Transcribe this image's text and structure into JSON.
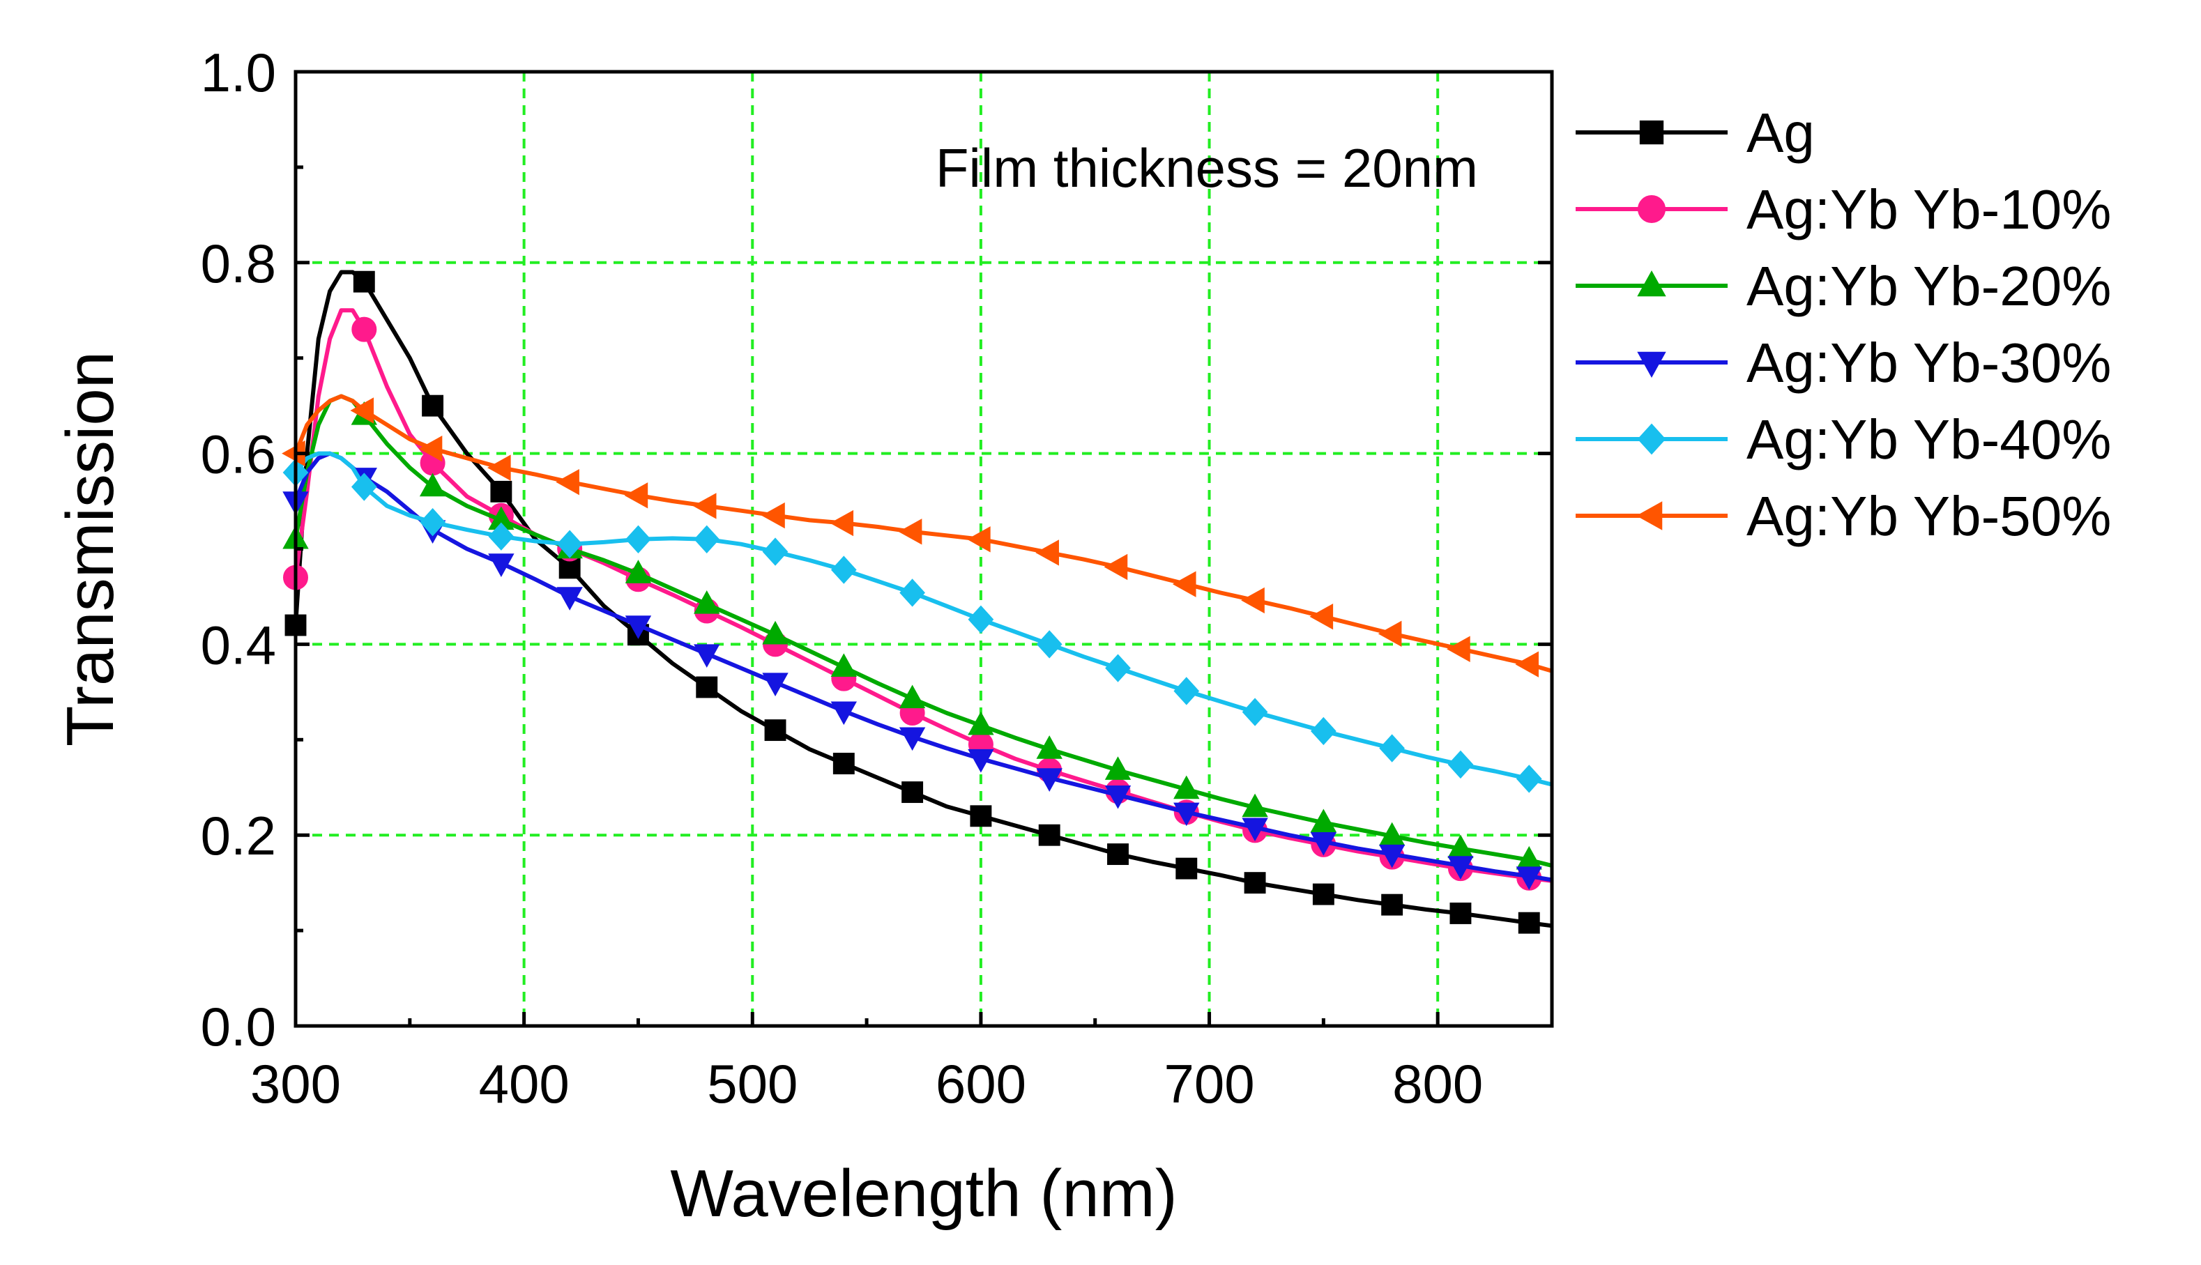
{
  "chart_data": {
    "type": "line",
    "title": "",
    "annotation": "Film thickness = 20nm",
    "xlabel": "Wavelength (nm)",
    "ylabel": "Transmission",
    "xlim": [
      300,
      850
    ],
    "ylim": [
      0.0,
      1.0
    ],
    "grid": true,
    "legend_position": "right",
    "xticks": [
      300,
      400,
      500,
      600,
      700,
      800
    ],
    "xtick_labels": [
      "300",
      "400",
      "500",
      "600",
      "700",
      "800"
    ],
    "yticks": [
      0.0,
      0.2,
      0.4,
      0.6,
      0.8,
      1.0
    ],
    "ytick_labels": [
      "0.0",
      "0.2",
      "0.4",
      "0.6",
      "0.8",
      "1.0"
    ],
    "x": [
      300,
      305,
      310,
      315,
      320,
      325,
      330,
      340,
      350,
      360,
      375,
      390,
      405,
      420,
      435,
      450,
      465,
      480,
      495,
      510,
      525,
      540,
      555,
      570,
      585,
      600,
      615,
      630,
      645,
      660,
      675,
      690,
      705,
      720,
      735,
      750,
      765,
      780,
      795,
      810,
      825,
      840,
      850
    ],
    "marker_x": [
      300,
      330,
      360,
      390,
      420,
      450,
      480,
      510,
      540,
      570,
      600,
      630,
      660,
      690,
      720,
      750,
      780,
      810,
      840
    ],
    "series": [
      {
        "name": "Ag",
        "color": "#000000",
        "marker": "square",
        "values": [
          0.42,
          0.6,
          0.72,
          0.77,
          0.79,
          0.79,
          0.78,
          0.74,
          0.7,
          0.65,
          0.6,
          0.56,
          0.51,
          0.48,
          0.44,
          0.41,
          0.38,
          0.355,
          0.33,
          0.31,
          0.29,
          0.275,
          0.26,
          0.245,
          0.23,
          0.22,
          0.21,
          0.2,
          0.19,
          0.18,
          0.172,
          0.165,
          0.158,
          0.15,
          0.144,
          0.138,
          0.132,
          0.127,
          0.122,
          0.118,
          0.113,
          0.108,
          0.105
        ]
      },
      {
        "name": "Ag:Yb Yb-10%",
        "color": "#ff1a8c",
        "marker": "circle",
        "values": [
          0.47,
          0.56,
          0.66,
          0.72,
          0.75,
          0.75,
          0.73,
          0.67,
          0.62,
          0.59,
          0.555,
          0.535,
          0.515,
          0.5,
          0.485,
          0.468,
          0.452,
          0.435,
          0.418,
          0.4,
          0.382,
          0.364,
          0.346,
          0.328,
          0.311,
          0.295,
          0.28,
          0.268,
          0.257,
          0.246,
          0.235,
          0.224,
          0.214,
          0.205,
          0.197,
          0.19,
          0.183,
          0.177,
          0.171,
          0.165,
          0.16,
          0.155,
          0.152
        ]
      },
      {
        "name": "Ag:Yb Yb-20%",
        "color": "#00aa00",
        "marker": "triangle-up",
        "values": [
          0.51,
          0.58,
          0.63,
          0.655,
          0.66,
          0.655,
          0.64,
          0.61,
          0.585,
          0.565,
          0.545,
          0.53,
          0.515,
          0.5,
          0.488,
          0.474,
          0.458,
          0.442,
          0.426,
          0.41,
          0.393,
          0.376,
          0.359,
          0.343,
          0.328,
          0.315,
          0.302,
          0.29,
          0.279,
          0.268,
          0.258,
          0.248,
          0.238,
          0.229,
          0.221,
          0.213,
          0.206,
          0.199,
          0.192,
          0.186,
          0.18,
          0.174,
          0.168
        ]
      },
      {
        "name": "Ag:Yb Yb-30%",
        "color": "#1515e0",
        "marker": "triangle-down",
        "values": [
          0.55,
          0.58,
          0.595,
          0.6,
          0.595,
          0.585,
          0.575,
          0.56,
          0.54,
          0.52,
          0.5,
          0.485,
          0.468,
          0.45,
          0.435,
          0.42,
          0.405,
          0.39,
          0.375,
          0.36,
          0.345,
          0.33,
          0.316,
          0.303,
          0.291,
          0.28,
          0.27,
          0.26,
          0.251,
          0.242,
          0.233,
          0.224,
          0.216,
          0.208,
          0.2,
          0.193,
          0.186,
          0.18,
          0.174,
          0.168,
          0.162,
          0.157,
          0.153
        ]
      },
      {
        "name": "Ag:Yb Yb-40%",
        "color": "#18bfee",
        "marker": "diamond",
        "values": [
          0.58,
          0.595,
          0.6,
          0.6,
          0.595,
          0.585,
          0.565,
          0.545,
          0.535,
          0.528,
          0.52,
          0.513,
          0.508,
          0.505,
          0.507,
          0.51,
          0.511,
          0.51,
          0.505,
          0.497,
          0.488,
          0.478,
          0.466,
          0.454,
          0.44,
          0.426,
          0.413,
          0.4,
          0.387,
          0.375,
          0.363,
          0.351,
          0.34,
          0.329,
          0.319,
          0.309,
          0.3,
          0.291,
          0.282,
          0.274,
          0.267,
          0.259,
          0.253
        ]
      },
      {
        "name": "Ag:Yb Yb-50%",
        "color": "#ff5500",
        "marker": "triangle-left",
        "values": [
          0.6,
          0.63,
          0.645,
          0.655,
          0.66,
          0.655,
          0.645,
          0.63,
          0.615,
          0.605,
          0.595,
          0.585,
          0.578,
          0.57,
          0.563,
          0.556,
          0.55,
          0.545,
          0.54,
          0.535,
          0.53,
          0.527,
          0.523,
          0.518,
          0.514,
          0.51,
          0.503,
          0.496,
          0.489,
          0.481,
          0.472,
          0.463,
          0.454,
          0.446,
          0.438,
          0.429,
          0.42,
          0.411,
          0.403,
          0.395,
          0.387,
          0.379,
          0.372
        ]
      }
    ]
  }
}
